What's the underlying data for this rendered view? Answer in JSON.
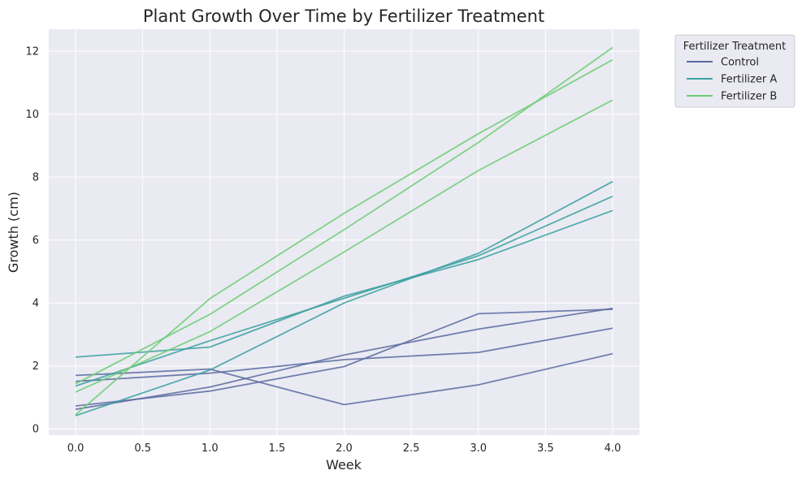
{
  "chart_data": {
    "type": "line",
    "title": "Plant Growth Over Time by Fertilizer Treatment",
    "xlabel": "Week",
    "ylabel": "Growth (cm)",
    "xlim": [
      -0.2,
      4.2
    ],
    "ylim": [
      -0.2,
      12.7
    ],
    "xticks": [
      0.0,
      0.5,
      1.0,
      1.5,
      2.0,
      2.5,
      3.0,
      3.5,
      4.0
    ],
    "xtick_labels": [
      "0.0",
      "0.5",
      "1.0",
      "1.5",
      "2.0",
      "2.5",
      "3.0",
      "3.5",
      "4.0"
    ],
    "yticks": [
      0,
      2,
      4,
      6,
      8,
      10,
      12
    ],
    "ytick_labels": [
      "0",
      "2",
      "4",
      "6",
      "8",
      "10",
      "12"
    ],
    "grid": true,
    "legend_title": "Fertilizer Treatment",
    "legend_position": "outside-top-right",
    "legend": [
      {
        "label": "Control",
        "color": "#5a6ba0"
      },
      {
        "label": "Fertilizer A",
        "color": "#3aa0a0"
      },
      {
        "label": "Fertilizer B",
        "color": "#6cce73"
      }
    ],
    "x": [
      0,
      1,
      2,
      3,
      4
    ],
    "series": [
      {
        "group": "Control",
        "color": "#5a6ba0",
        "values": [
          1.7,
          1.9,
          0.77,
          1.4,
          2.39
        ]
      },
      {
        "group": "Control",
        "color": "#5a6ba0",
        "values": [
          1.51,
          1.77,
          2.2,
          2.43,
          3.2
        ]
      },
      {
        "group": "Control",
        "color": "#5a6ba0",
        "values": [
          0.73,
          1.2,
          1.98,
          3.66,
          3.8
        ]
      },
      {
        "group": "Control",
        "color": "#5a6ba0",
        "values": [
          0.62,
          1.33,
          2.35,
          3.17,
          3.83
        ]
      },
      {
        "group": "Fertilizer A",
        "color": "#3aa0a0",
        "values": [
          2.28,
          2.6,
          4.22,
          5.38,
          6.94
        ]
      },
      {
        "group": "Fertilizer A",
        "color": "#3aa0a0",
        "values": [
          1.36,
          2.8,
          4.15,
          5.5,
          7.39
        ]
      },
      {
        "group": "Fertilizer A",
        "color": "#3aa0a0",
        "values": [
          0.42,
          1.87,
          4.0,
          5.58,
          7.86
        ]
      },
      {
        "group": "Fertilizer B",
        "color": "#6cce73",
        "values": [
          1.17,
          3.09,
          5.62,
          8.21,
          10.45
        ]
      },
      {
        "group": "Fertilizer B",
        "color": "#6cce73",
        "values": [
          1.43,
          3.64,
          6.33,
          9.1,
          12.12
        ]
      },
      {
        "group": "Fertilizer B",
        "color": "#6cce73",
        "values": [
          0.45,
          4.14,
          6.85,
          9.38,
          11.73
        ]
      }
    ]
  }
}
